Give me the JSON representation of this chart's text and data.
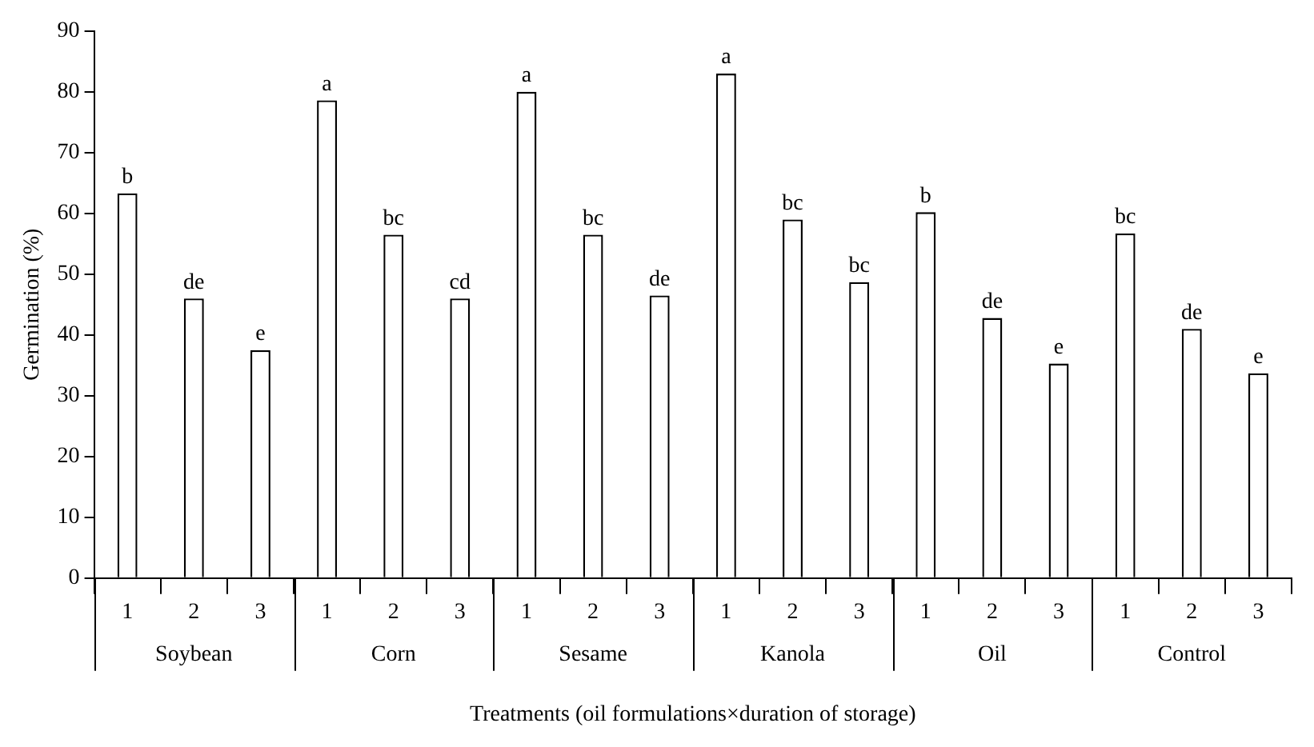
{
  "chart_data": {
    "type": "bar",
    "xlabel": "Treatments (oil formulations×duration of storage)",
    "ylabel": "Germination (%)",
    "categories": [
      "1",
      "2",
      "3",
      "1",
      "2",
      "3",
      "1",
      "2",
      "3",
      "1",
      "2",
      "3",
      "1",
      "2",
      "3",
      "1",
      "2",
      "3"
    ],
    "values": [
      63.3,
      46,
      37.5,
      78.6,
      56.5,
      46,
      80,
      56.5,
      46.5,
      83,
      59,
      48.7,
      60.2,
      42.8,
      35.3,
      56.7,
      41,
      33.7
    ],
    "value_labels": [
      "b",
      "de",
      "e",
      "a",
      "bc",
      "cd",
      "a",
      "bc",
      "de",
      "a",
      "bc",
      "bc",
      "b",
      "de",
      "e",
      "bc",
      "de",
      "e"
    ],
    "color": "#ffffff",
    "annotations": [
      "Soybean",
      "Corn",
      "Sesame",
      "Kanola",
      "Oil",
      "Control"
    ],
    "ylim": [
      0,
      90
    ],
    "yticks": [
      0,
      10,
      20,
      30,
      40,
      50,
      60,
      70,
      80,
      90
    ],
    "grid": false,
    "legend": false
  }
}
